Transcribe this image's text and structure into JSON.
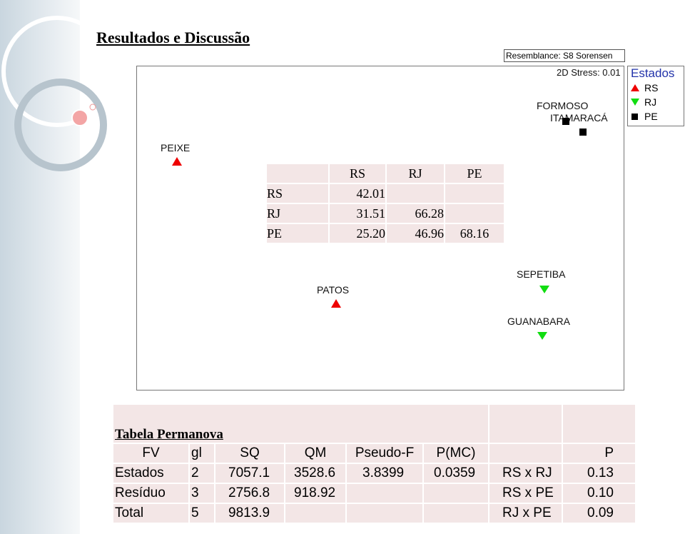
{
  "slide": {
    "title": "Resultados e Discussão"
  },
  "plot": {
    "resemblance": "Resemblance: S8 Sorensen",
    "stress": "2D Stress: 0.01",
    "legend": {
      "title": "Estados",
      "items": [
        "RS",
        "RJ",
        "PE"
      ]
    },
    "points": [
      {
        "label": "PEIXE"
      },
      {
        "label": "PATOS"
      },
      {
        "label": "FORMOSO"
      },
      {
        "label": "ITAMARACÁ"
      },
      {
        "label": "SEPETIBA"
      },
      {
        "label": "GUANABARA"
      }
    ]
  },
  "similarity_table": {
    "header": [
      "RS",
      "RJ",
      "PE"
    ],
    "rows": [
      [
        "RS",
        "42.01"
      ],
      [
        "RJ",
        "31.51",
        "66.28"
      ],
      [
        "PE",
        "25.20",
        "46.96",
        "68.16"
      ]
    ]
  },
  "permanova": {
    "title": "Tabela Permanova",
    "header": [
      "FV",
      "gl",
      "SQ",
      "QM",
      "Pseudo-F",
      "P(MC)"
    ],
    "rows": [
      [
        "Estados",
        "2",
        "7057.1",
        "3528.6",
        "3.8399",
        "0.0359"
      ],
      [
        "Resíduo",
        "3",
        "2756.8",
        "918.92"
      ],
      [
        "Total",
        "5",
        "9813.9"
      ]
    ]
  },
  "pairwise": {
    "header": "P",
    "rows": [
      [
        "RS x RJ",
        "0.13"
      ],
      [
        "RS x PE",
        "0.10"
      ],
      [
        "RJ x PE",
        "0.09"
      ]
    ]
  }
}
